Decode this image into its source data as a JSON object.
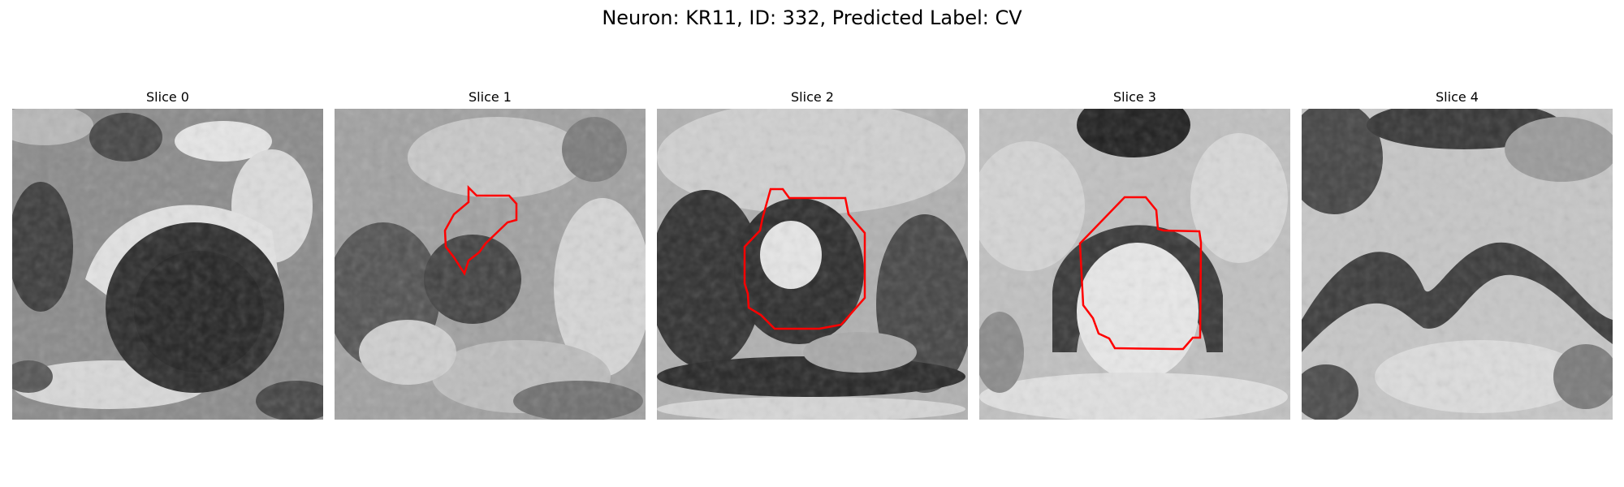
{
  "figure": {
    "title": "Neuron: KR11, ID: 332, Predicted Label: CV"
  },
  "contour_color": "#ff0000",
  "slices": [
    {
      "title": "Slice 0",
      "has_contour": false
    },
    {
      "title": "Slice 1",
      "has_contour": true
    },
    {
      "title": "Slice 2",
      "has_contour": true
    },
    {
      "title": "Slice 3",
      "has_contour": true
    },
    {
      "title": "Slice 4",
      "has_contour": false
    }
  ]
}
